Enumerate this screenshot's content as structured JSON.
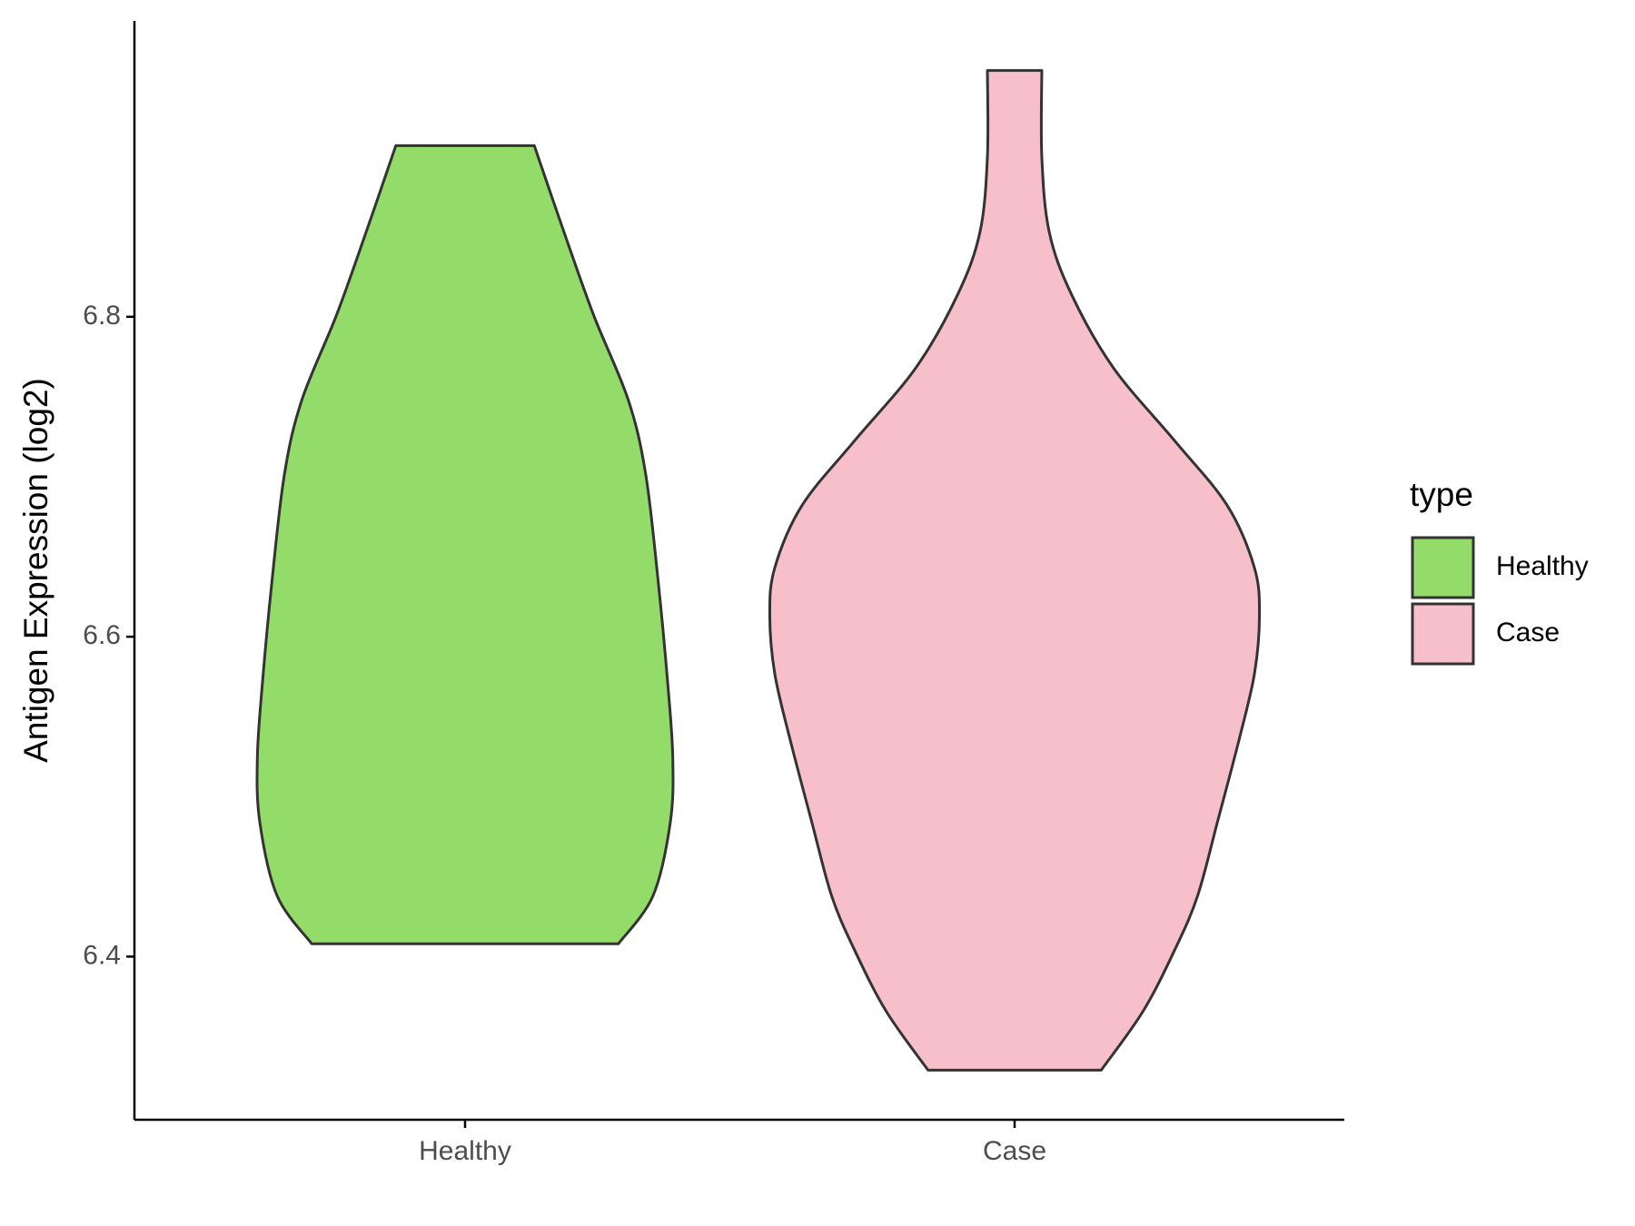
{
  "chart_data": {
    "type": "violin",
    "y_label": "Antigen Expression (log2)",
    "categories": [
      "Healthy",
      "Case"
    ],
    "ylim": [
      6.298,
      6.985
    ],
    "yticks": [
      6.4,
      6.6,
      6.8
    ],
    "legend_title": "type",
    "legend_position": "right",
    "series": [
      {
        "name": "Healthy",
        "color": "#93dc6a",
        "y": [
          6.408,
          6.438,
          6.484,
          6.524,
          6.57,
          6.636,
          6.702,
          6.748,
          6.801,
          6.853,
          6.907
        ],
        "density": [
          0.62,
          0.76,
          0.83,
          0.84,
          0.82,
          0.78,
          0.73,
          0.66,
          0.52,
          0.4,
          0.28
        ]
      },
      {
        "name": "Case",
        "color": "#f7bfca",
        "y": [
          6.329,
          6.366,
          6.405,
          6.438,
          6.484,
          6.537,
          6.577,
          6.613,
          6.643,
          6.682,
          6.722,
          6.768,
          6.814,
          6.853,
          6.9,
          6.954
        ],
        "density": [
          0.35,
          0.52,
          0.65,
          0.74,
          0.82,
          0.91,
          0.97,
          0.99,
          0.97,
          0.86,
          0.65,
          0.4,
          0.23,
          0.14,
          0.11,
          0.11
        ]
      }
    ]
  }
}
